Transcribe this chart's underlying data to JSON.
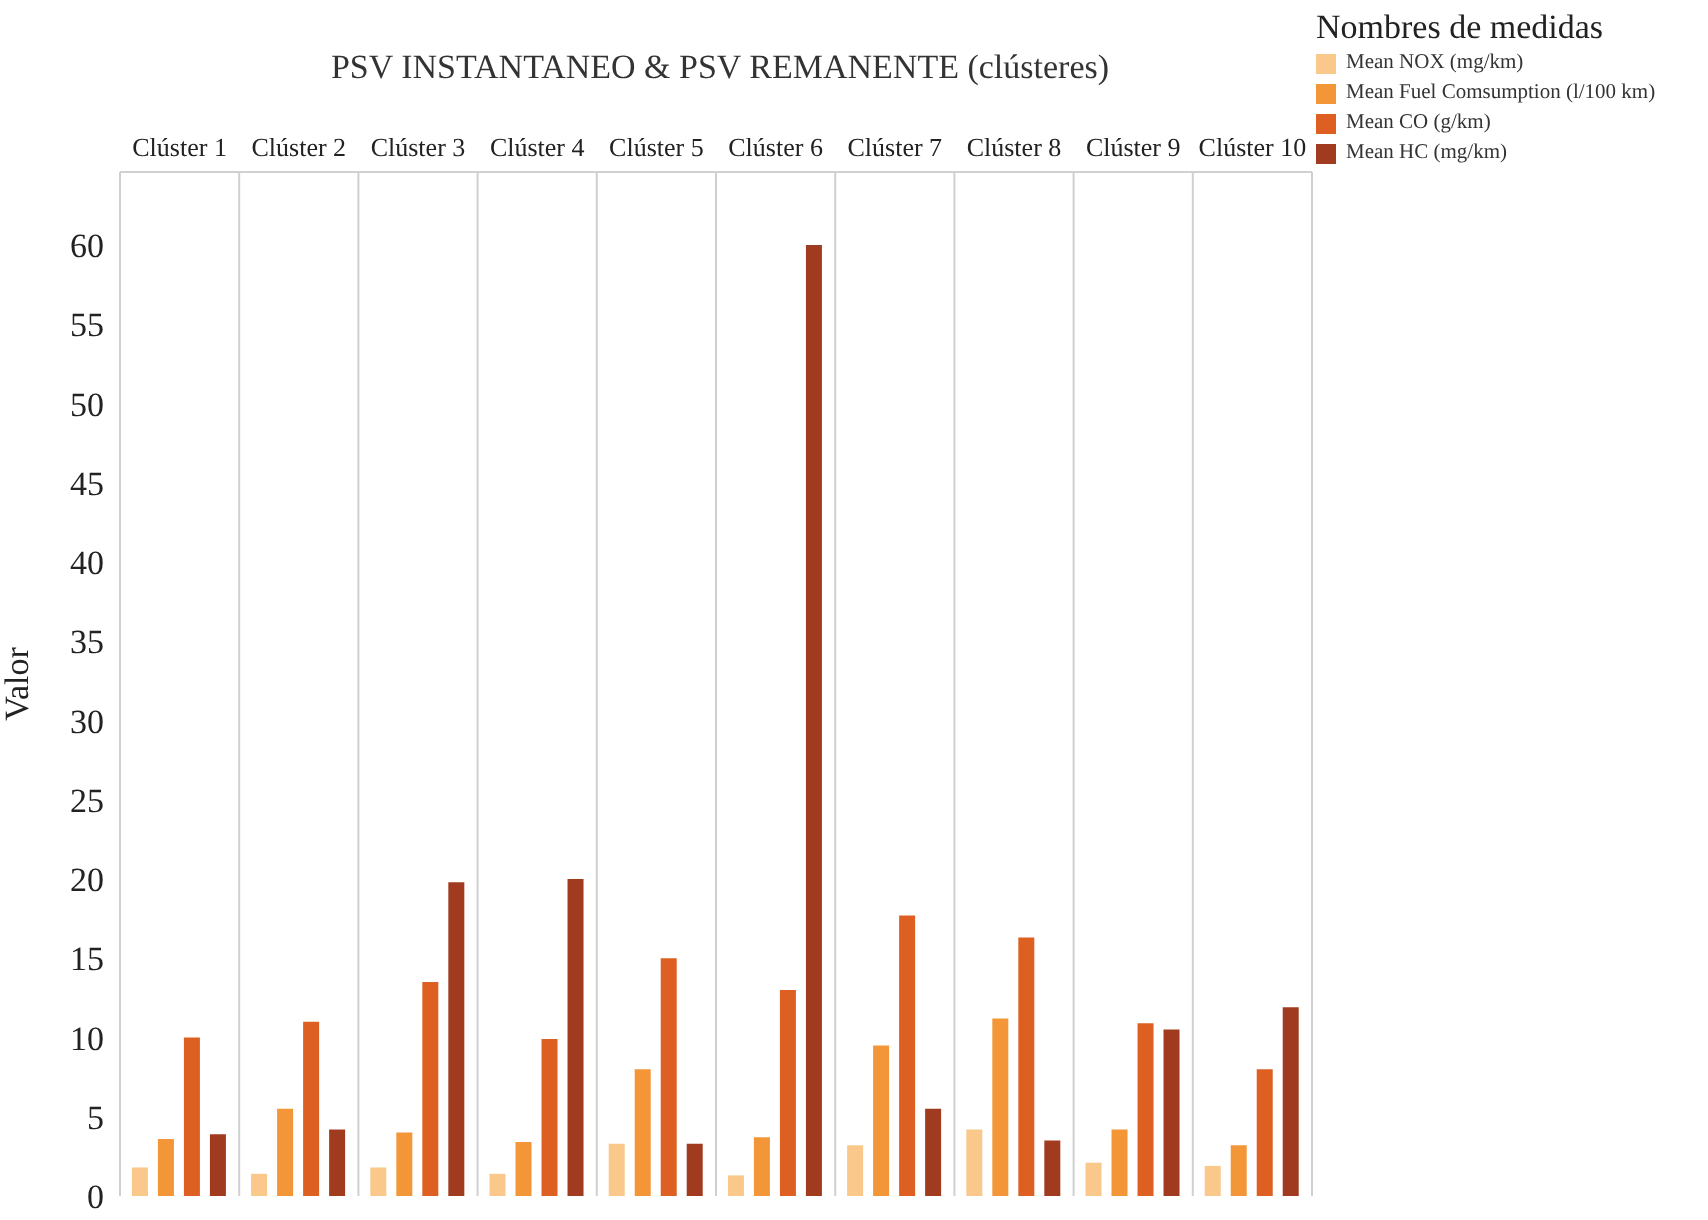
{
  "chart_data": {
    "type": "bar",
    "title": "PSV INSTANTANEO & PSV REMANENTE (clústeres)",
    "ylabel": "Valor",
    "legend_title": "Nombres de medidas",
    "categories": [
      "Clúster 1",
      "Clúster 2",
      "Clúster 3",
      "Clúster 4",
      "Clúster 5",
      "Clúster 6",
      "Clúster 7",
      "Clúster 8",
      "Clúster 9",
      "Clúster 10"
    ],
    "series": [
      {
        "name": "Mean NOX (mg/km)",
        "color": "#f9c88a",
        "values": [
          1.8,
          1.4,
          1.8,
          1.4,
          3.3,
          1.3,
          3.2,
          4.2,
          2.1,
          1.9
        ]
      },
      {
        "name": "Mean Fuel Comsumption (l/100 km)",
        "color": "#f39637",
        "values": [
          3.6,
          5.5,
          4.0,
          3.4,
          8.0,
          3.7,
          9.5,
          11.2,
          4.2,
          3.2
        ]
      },
      {
        "name": "Mean CO (g/km)",
        "color": "#dd6022",
        "values": [
          10,
          11,
          13.5,
          9.9,
          15,
          13,
          17.7,
          16.3,
          10.9,
          8
        ]
      },
      {
        "name": "Mean HC (mg/km)",
        "color": "#a03b1f",
        "values": [
          3.9,
          4.2,
          19.8,
          20,
          3.3,
          60,
          5.5,
          3.5,
          10.5,
          11.9
        ]
      }
    ],
    "ylim": [
      0,
      64.6
    ],
    "yticks": [
      0,
      5,
      10,
      15,
      20,
      25,
      30,
      35,
      40,
      45,
      50,
      55,
      60
    ],
    "grid": "x",
    "legend": "top right"
  }
}
